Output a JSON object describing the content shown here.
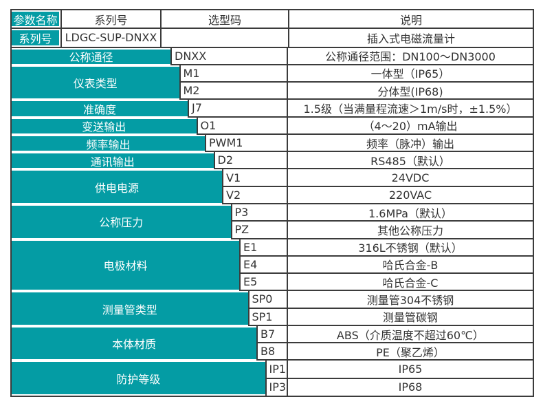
{
  "table": {
    "title_semantic": "插入式电磁流量计选型表",
    "colors": {
      "teal": "#049CA4",
      "border": "#3B3B3B",
      "text": "#333333",
      "label_text": "#FFFFFF"
    },
    "header": {
      "param": "参数名称",
      "series": "系列号",
      "code": "选型码",
      "desc": "说明"
    },
    "series_row": {
      "label": "系列号",
      "model": "LDGC-SUP-DNXX",
      "spacer": "",
      "desc": "插入式电磁流量计"
    },
    "groups": [
      {
        "label": "公称通径",
        "items": [
          {
            "code": "DNXX",
            "desc": "公称通径范围：DN100～DN3000"
          }
        ]
      },
      {
        "label": "仪表类型",
        "items": [
          {
            "code": "M1",
            "desc": "一体型（IP65）"
          },
          {
            "code": "M2",
            "desc": "分体型(IP68)"
          }
        ]
      },
      {
        "label": "准确度",
        "items": [
          {
            "code": "J7",
            "desc": "1.5级（当满量程流速＞1m/s时，±1.5%）"
          }
        ]
      },
      {
        "label": "变送输出",
        "items": [
          {
            "code": "O1",
            "desc": "（4～20）mA输出"
          }
        ]
      },
      {
        "label": "频率输出",
        "items": [
          {
            "code": "PWM1",
            "desc": "频率（脉冲）输出"
          }
        ]
      },
      {
        "label": "通讯输出",
        "items": [
          {
            "code": "D2",
            "desc": "RS485（默认）"
          }
        ]
      },
      {
        "label": "供电电源",
        "items": [
          {
            "code": "V1",
            "desc": "24VDC"
          },
          {
            "code": "V2",
            "desc": "220VAC"
          }
        ]
      },
      {
        "label": "公称压力",
        "items": [
          {
            "code": "P3",
            "desc": "1.6MPa（默认）"
          },
          {
            "code": "PZ",
            "desc": "其他公称压力"
          }
        ]
      },
      {
        "label": "电极材料",
        "items": [
          {
            "code": "E1",
            "desc": "316L不锈钢（默认）"
          },
          {
            "code": "E4",
            "desc": "哈氏合金-B"
          },
          {
            "code": "E5",
            "desc": "哈氏合金-C"
          }
        ]
      },
      {
        "label": "测量管类型",
        "items": [
          {
            "code": "SP0",
            "desc": "测量管304不锈钢"
          },
          {
            "code": "SP1",
            "desc": "测量管碳钢"
          }
        ]
      },
      {
        "label": "本体材质",
        "items": [
          {
            "code": "B7",
            "desc": "ABS（介质温度不超过60℃）"
          },
          {
            "code": "B8",
            "desc": "PE（聚乙烯）"
          }
        ]
      },
      {
        "label": "防护等级",
        "items": [
          {
            "code": "IP1",
            "desc": "IP65"
          },
          {
            "code": "IP3",
            "desc": "IP68"
          }
        ]
      }
    ]
  }
}
